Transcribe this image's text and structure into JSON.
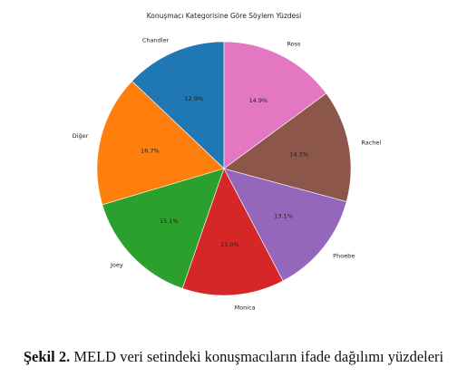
{
  "chart_data": {
    "type": "pie",
    "title": "Konuşmacı Kategorisine Göre Söylem Yüzdesi",
    "categories": [
      "Chandler",
      "Diğer",
      "Joey",
      "Monica",
      "Phoebe",
      "Rachel",
      "Ross"
    ],
    "values": [
      12.9,
      16.7,
      15.1,
      13.0,
      13.1,
      14.3,
      14.9
    ],
    "percent_labels": [
      "12.9%",
      "16.7%",
      "15.1%",
      "13.0%",
      "13.1%",
      "14.3%",
      "14.9%"
    ],
    "colors": [
      "#1f77b4",
      "#ff7f0e",
      "#2ca02c",
      "#d62728",
      "#9467bd",
      "#8c564b",
      "#e377c2"
    ],
    "start_angle_deg": 90,
    "direction": "counterclockwise",
    "legend": "none"
  },
  "caption": {
    "label": "Şekil 2.",
    "text": " MELD veri setindeki konuşmacıların ifade dağılımı yüzdeleri"
  }
}
